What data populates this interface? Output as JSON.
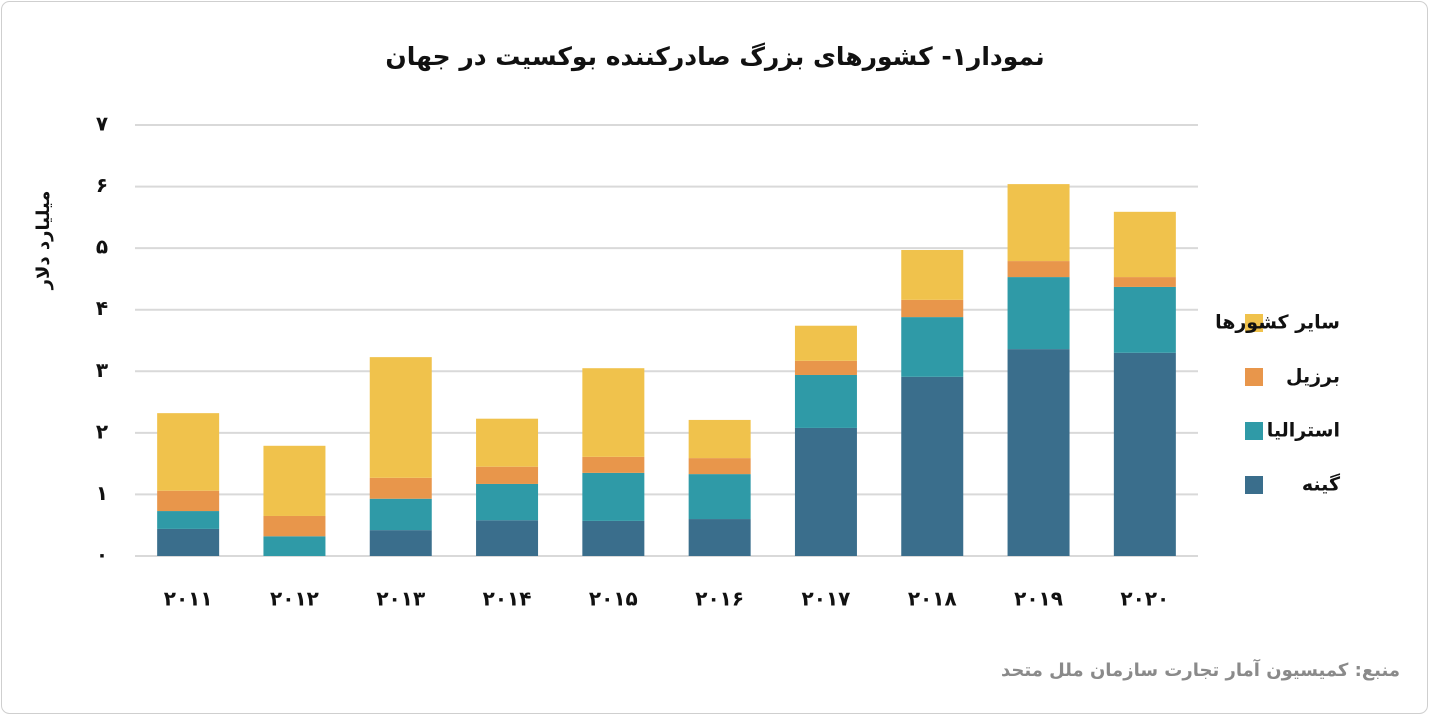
{
  "chart_data": {
    "type": "stacked_bar",
    "title": "نمودار۱- کشورهای بزرگ صادرکننده بوکسیت در جهان",
    "y_label": "میلیارد دلار",
    "source": "منبع: کمیسیون آمار تجارت سازمان ملل متحد",
    "categories": [
      "۲۰۱۱",
      "۲۰۱۲",
      "۲۰۱۳",
      "۲۰۱۴",
      "۲۰۱۵",
      "۲۰۱۶",
      "۲۰۱۷",
      "۲۰۱۸",
      "۲۰۱۹",
      "۲۰۲۰"
    ],
    "series": [
      {
        "name": "گینه",
        "color": "#3a6e8c",
        "values": [
          0.44,
          0,
          0.42,
          0.58,
          0.57,
          0.6,
          2.08,
          2.91,
          3.36,
          3.3
        ]
      },
      {
        "name": "استرالیا",
        "color": "#2f9aa7",
        "values": [
          0.29,
          0.32,
          0.51,
          0.59,
          0.78,
          0.73,
          0.86,
          0.97,
          1.17,
          1.07
        ]
      },
      {
        "name": "برزیل",
        "color": "#e8964b",
        "values": [
          0.33,
          0.33,
          0.34,
          0.28,
          0.26,
          0.26,
          0.23,
          0.28,
          0.26,
          0.16
        ]
      },
      {
        "name": "سایر کشورها",
        "color": "#f0c24c",
        "values": [
          1.26,
          1.14,
          1.96,
          0.78,
          1.44,
          0.62,
          0.57,
          0.81,
          1.25,
          1.06
        ]
      }
    ],
    "ylim": [
      0,
      7
    ],
    "yticks": [
      {
        "value": 0,
        "label": "۰"
      },
      {
        "value": 1,
        "label": "۱"
      },
      {
        "value": 2,
        "label": "۲"
      },
      {
        "value": 3,
        "label": "۳"
      },
      {
        "value": 4,
        "label": "۴"
      },
      {
        "value": 5,
        "label": "۵"
      },
      {
        "value": 6,
        "label": "۶"
      },
      {
        "value": 7,
        "label": "۷"
      }
    ],
    "grid": true,
    "legend": "right"
  }
}
